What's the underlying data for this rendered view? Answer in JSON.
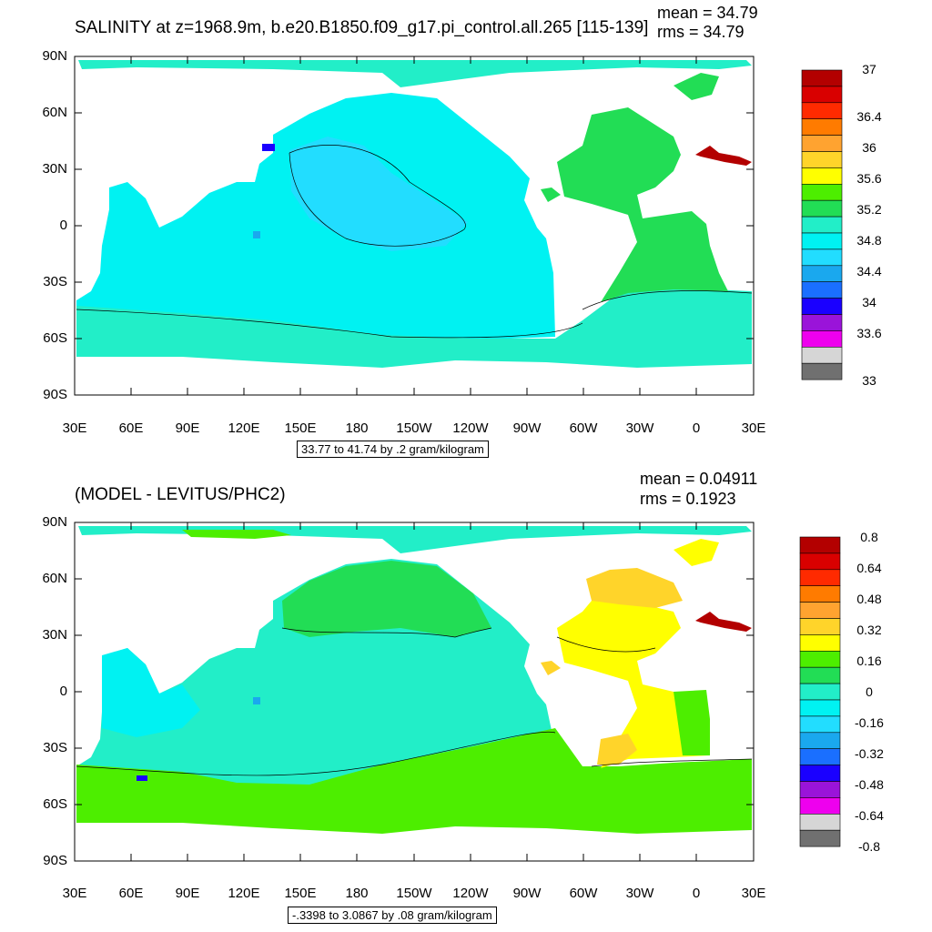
{
  "lat_labels": [
    "90N",
    "60N",
    "30N",
    "0",
    "30S",
    "60S",
    "90S"
  ],
  "lon_labels": [
    "30E",
    "60E",
    "90E",
    "120E",
    "150E",
    "180",
    "150W",
    "120W",
    "90W",
    "60W",
    "30W",
    "0",
    "30E"
  ],
  "panels": [
    {
      "title": "SALINITY at z=1968.9m, b.e20.B1850.f09_g17.pi_control.all.265 [115-139]",
      "mean": "mean = 34.79",
      "rms": "rms = 34.79",
      "info": "33.77 to 41.74 by .2 gram/kilogram",
      "colorbar": {
        "labels": [
          "37",
          "36.4",
          "36",
          "35.6",
          "35.2",
          "34.8",
          "34.4",
          "34",
          "33.6",
          "33"
        ],
        "colors": [
          "#b30000",
          "#d90000",
          "#ff2a00",
          "#ff7b00",
          "#ffa330",
          "#ffd42a",
          "#ffff00",
          "#4dee00",
          "#22dd55",
          "#22eec8",
          "#00f2f2",
          "#22ddff",
          "#1aa8ee",
          "#1a6fff",
          "#1a00ff",
          "#9a14d9",
          "#ee00ee",
          "#d6d6d6",
          "#707070"
        ]
      }
    },
    {
      "title": "(MODEL - LEVITUS/PHC2)",
      "mean": "mean = 0.04911",
      "rms": "rms = 0.1923",
      "info": "-.3398 to 3.0867 by .08 gram/kilogram",
      "colorbar": {
        "labels": [
          "0.8",
          "0.64",
          "0.48",
          "0.32",
          "0.16",
          "0",
          "-0.16",
          "-0.32",
          "-0.48",
          "-0.64",
          "-0.8"
        ],
        "colors": [
          "#b30000",
          "#d90000",
          "#ff2a00",
          "#ff7b00",
          "#ffa330",
          "#ffd42a",
          "#ffff00",
          "#4dee00",
          "#22dd55",
          "#22eec8",
          "#00f2f2",
          "#22ddff",
          "#1aa8ee",
          "#1a6fff",
          "#1a00ff",
          "#9a14d9",
          "#ee00ee",
          "#d6d6d6",
          "#707070"
        ]
      }
    }
  ]
}
